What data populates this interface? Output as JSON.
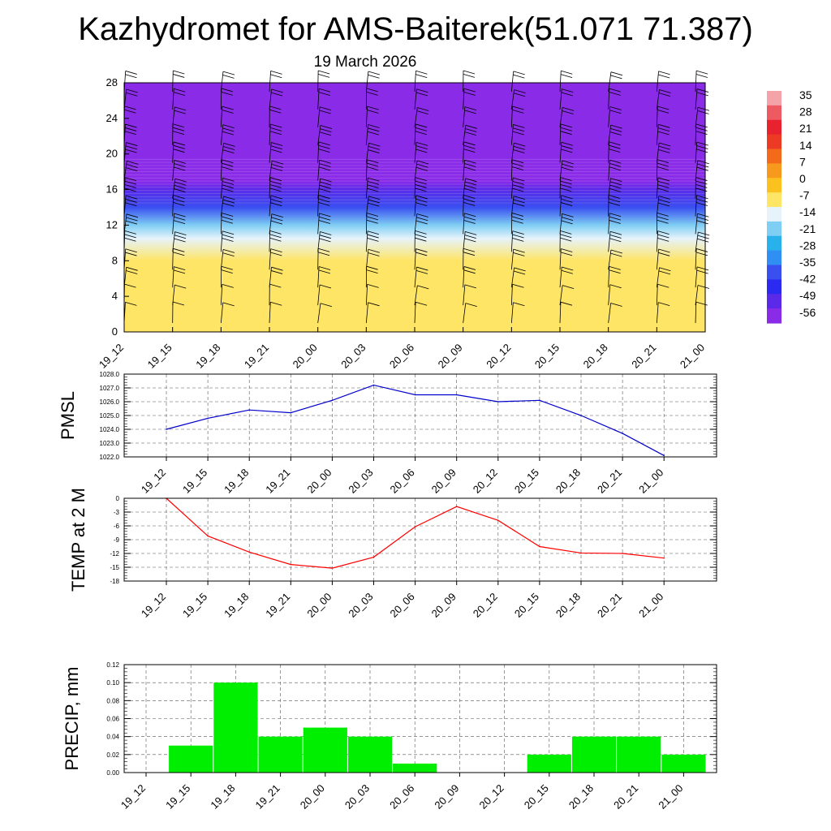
{
  "header": {
    "title": "Kazhydromet for AMS-Baiterek(51.071 71.387)",
    "date": "19 March 2026"
  },
  "times": [
    "19_12",
    "19_15",
    "19_18",
    "19_21",
    "20_00",
    "20_03",
    "20_06",
    "20_09",
    "20_12",
    "20_15",
    "20_18",
    "20_21",
    "21_00"
  ],
  "chart_data": [
    {
      "type": "heatmap",
      "name": "temperature-wind-cross-section",
      "title": "",
      "xlabel": "",
      "ylabel": "",
      "y_ticks": [
        "0",
        "4",
        "8",
        "12",
        "16",
        "20",
        "24",
        "28"
      ],
      "ylim": [
        0,
        28
      ],
      "levels": [
        {
          "y": 0,
          "value": -8
        },
        {
          "y": 4,
          "value": -9
        },
        {
          "y": 8,
          "value": -10
        },
        {
          "y": 10.5,
          "value": -12
        },
        {
          "y": 12,
          "value": -22
        },
        {
          "y": 14,
          "value": -35
        },
        {
          "y": 16,
          "value": -50
        },
        {
          "y": 17,
          "value": -58
        },
        {
          "y": 18.5,
          "value": -54
        },
        {
          "y": 22,
          "value": -56
        },
        {
          "y": 28,
          "value": -58
        }
      ],
      "colorbar": {
        "labels": [
          "35",
          "28",
          "21",
          "14",
          "7",
          "0",
          "-7",
          "-14",
          "-21",
          "-28",
          "-35",
          "-42",
          "-49",
          "-56"
        ],
        "colors": [
          "#f4a3a8",
          "#ee5a62",
          "#e8232f",
          "#ec3a24",
          "#f26a1a",
          "#f7991c",
          "#fbc21f",
          "#ffe566",
          "#e6f3fb",
          "#7fcef3",
          "#29b1ec",
          "#2f8ff2",
          "#3a4ff0",
          "#2a2af0",
          "#5a2ae8",
          "#8a2be8"
        ]
      },
      "wind_speed_by_level": [
        {
          "y": 1,
          "speed": 12
        },
        {
          "y": 3,
          "speed": 14
        },
        {
          "y": 5,
          "speed": 18
        },
        {
          "y": 7,
          "speed": 22
        },
        {
          "y": 9,
          "speed": 26
        },
        {
          "y": 11,
          "speed": 30
        },
        {
          "y": 13,
          "speed": 34
        },
        {
          "y": 15,
          "speed": 36
        },
        {
          "y": 17,
          "speed": 30
        },
        {
          "y": 19,
          "speed": 28
        },
        {
          "y": 21,
          "speed": 26
        },
        {
          "y": 23,
          "speed": 24
        },
        {
          "y": 25,
          "speed": 22
        },
        {
          "y": 27,
          "speed": 20
        }
      ]
    },
    {
      "type": "line",
      "name": "pmsl",
      "ylabel": "PMSL",
      "ylim": [
        1022,
        1028
      ],
      "y_ticks": [
        "1022.0",
        "1023.0",
        "1024.0",
        "1025.0",
        "1026.0",
        "1027.0",
        "1028.0"
      ],
      "color": "#0000cc",
      "values": [
        1024.0,
        1024.8,
        1025.4,
        1025.2,
        1026.1,
        1027.2,
        1026.5,
        1026.5,
        1026.0,
        1026.1,
        1025.0,
        1023.7,
        1022.1
      ]
    },
    {
      "type": "line",
      "name": "temp-2m",
      "ylabel": "TEMP at 2 M",
      "ylim": [
        -18,
        0
      ],
      "y_ticks": [
        "0",
        "-3",
        "-6",
        "-9",
        "-12",
        "-15",
        "-18"
      ],
      "color": "#ff0000",
      "values": [
        0,
        -8.2,
        -11.7,
        -14.4,
        -15.2,
        -12.8,
        -6.2,
        -1.8,
        -4.8,
        -10.5,
        -11.9,
        -12.0,
        -13.0
      ]
    },
    {
      "type": "bar",
      "name": "precip",
      "ylabel": "PRECIP, mm",
      "ylim": [
        0,
        0.12
      ],
      "y_ticks": [
        "0.00",
        "0.02",
        "0.04",
        "0.06",
        "0.08",
        "0.10",
        "0.12"
      ],
      "color": "#00ee00",
      "values": [
        0,
        0.03,
        0.1,
        0.04,
        0.05,
        0.04,
        0.01,
        0,
        0,
        0.02,
        0.04,
        0.04,
        0.02
      ]
    }
  ]
}
